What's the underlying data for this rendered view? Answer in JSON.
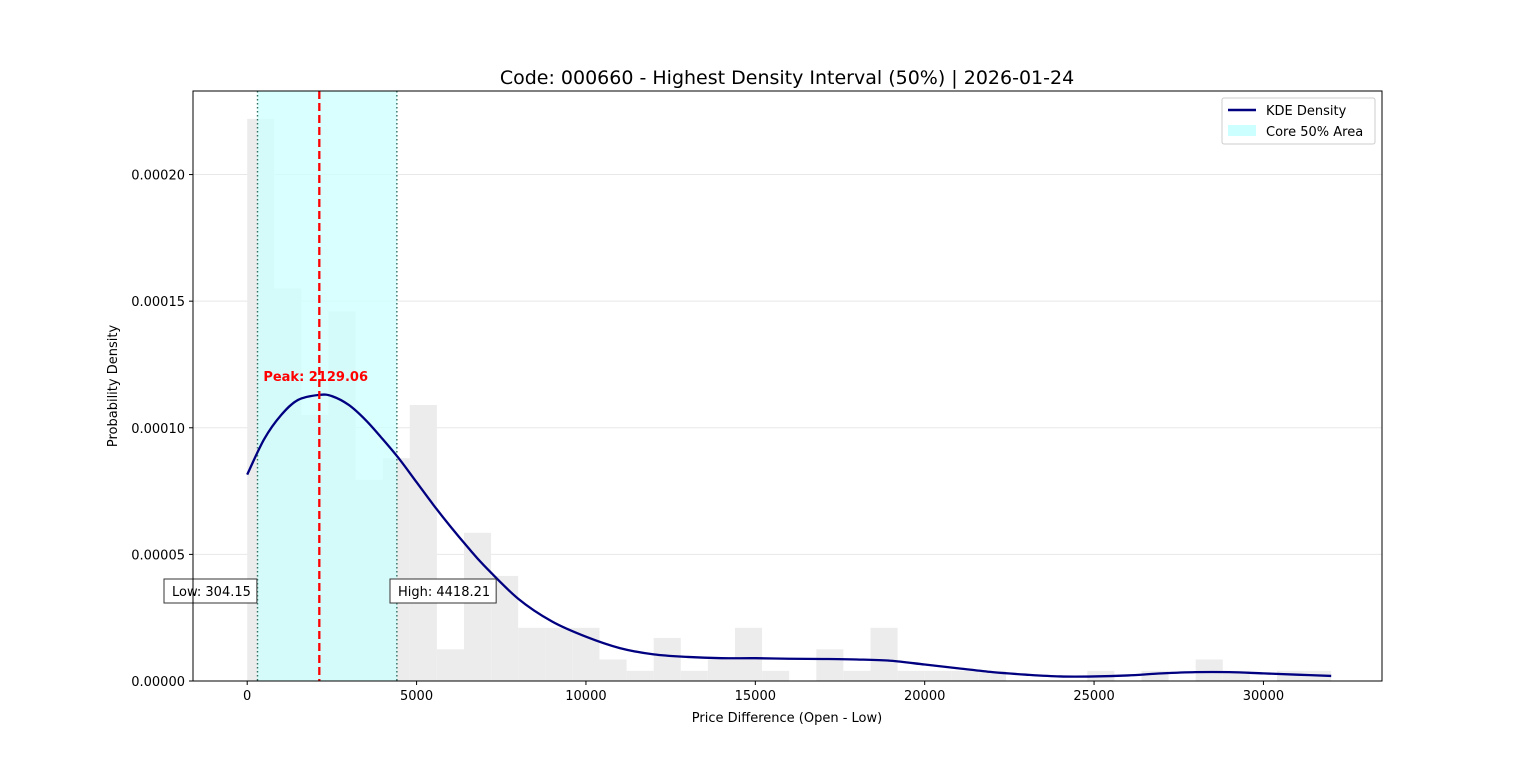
{
  "chart_data": {
    "type": "histogram",
    "title": "Code: 000660 - Highest Density Interval (50%) | 2026-01-24",
    "xlabel": "Price Difference (Open - Low)",
    "ylabel": "Probability Density",
    "xlim": [
      -1600,
      33500
    ],
    "ylim": [
      0,
      0.000233
    ],
    "xticks": [
      0,
      5000,
      10000,
      15000,
      20000,
      25000,
      30000
    ],
    "xtick_labels": [
      "0",
      "5000",
      "10000",
      "15000",
      "20000",
      "25000",
      "30000"
    ],
    "yticks": [
      0,
      5e-05,
      0.0001,
      0.00015,
      0.0002
    ],
    "ytick_labels": [
      "0.00000",
      "0.00005",
      "0.00010",
      "0.00015",
      "0.00020"
    ],
    "grid": "horizontal",
    "legend_position": "top-right",
    "histogram": {
      "bin_edges": [
        0,
        800,
        1600,
        2400,
        3200,
        4000,
        4800,
        5600,
        6400,
        7200,
        8000,
        8800,
        9600,
        10400,
        11200,
        12000,
        12800,
        13600,
        14400,
        15200,
        16000,
        16800,
        17600,
        18400,
        19200,
        20000,
        20800,
        21600,
        22400,
        23200,
        24000,
        24800,
        25600,
        26400,
        27200,
        28000,
        28800,
        29600,
        30400,
        31200,
        32000
      ],
      "values": [
        0.000222,
        0.000155,
        0.000105,
        0.000146,
        7.95e-05,
        8.8e-05,
        0.000109,
        1.25e-05,
        5.85e-05,
        4.15e-05,
        2.1e-05,
        2.1e-05,
        2.1e-05,
        8.5e-06,
        4e-06,
        1.7e-05,
        4e-06,
        8.5e-06,
        2.1e-05,
        4e-06,
        0,
        1.25e-05,
        4e-06,
        2.1e-05,
        4e-06,
        4e-06,
        4e-06,
        4e-06,
        0,
        0,
        0,
        4e-06,
        0,
        4e-06,
        0,
        8.5e-06,
        4e-06,
        0,
        4e-06,
        4e-06
      ],
      "color": "#ececec"
    },
    "series": [
      {
        "name": "KDE Density",
        "color": "#000080",
        "x": [
          0,
          500,
          1000,
          1500,
          2129,
          2500,
          3000,
          3500,
          4000,
          4500,
          5000,
          5500,
          6000,
          6500,
          7000,
          8000,
          9000,
          10000,
          11000,
          12000,
          13000,
          14000,
          15000,
          16000,
          17000,
          18000,
          19000,
          20000,
          21000,
          22000,
          23000,
          24000,
          25000,
          26000,
          27000,
          28000,
          29000,
          30000,
          31000,
          32000
        ],
        "y": [
          8.15e-05,
          9.55e-05,
          0.000105,
          0.000111,
          0.000113,
          0.0001125,
          0.000109,
          0.000103,
          9.55e-05,
          8.75e-05,
          7.85e-05,
          6.95e-05,
          6.1e-05,
          5.3e-05,
          4.55e-05,
          3.25e-05,
          2.35e-05,
          1.75e-05,
          1.3e-05,
          1.05e-05,
          9.5e-06,
          9e-06,
          9e-06,
          8.8e-06,
          8.7e-06,
          8.5e-06,
          8e-06,
          6.5e-06,
          5e-06,
          3.5e-06,
          2.5e-06,
          1.8e-06,
          1.8e-06,
          2.2e-06,
          3e-06,
          3.5e-06,
          3.5e-06,
          3e-06,
          2.5e-06,
          2e-06
        ]
      }
    ],
    "hdi": {
      "label": "Core 50% Area",
      "low": 304.15,
      "high": 4418.21,
      "low_label": "Low: 304.15",
      "high_label": "High: 4418.21",
      "fill_color": "#ccffff",
      "boundary_color": "#2f6f5f"
    },
    "peak": {
      "x": 2129.06,
      "label": "Peak: 2129.06",
      "color": "#ff0000"
    }
  }
}
